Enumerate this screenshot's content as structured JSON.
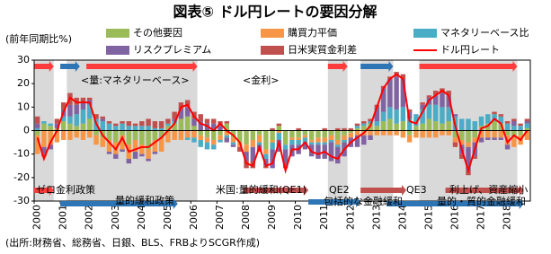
{
  "chart_data": {
    "type": "bar",
    "title": "図表⑤ ドル円レートの要因分解",
    "y_label": "(前年同期比%)",
    "source": "(出所:財務省、総務省、日銀、BLS、FRBよりSCGR作成)",
    "annotations": [
      "<量:マネタリーベース>",
      "<金利>",
      "ゼロ金利政策",
      "量的緩和政策",
      "米国:量的緩和(QE1)",
      "QE2",
      "包括的な金融緩和",
      "QE3",
      "利上げ、資産縮小",
      "量的・質的金融緩和"
    ],
    "categories": [
      "2000",
      null,
      null,
      null,
      "2001",
      null,
      null,
      null,
      "2002",
      null,
      null,
      null,
      "2003",
      null,
      null,
      null,
      "2004",
      null,
      null,
      null,
      "2005",
      null,
      null,
      null,
      "2006",
      null,
      null,
      null,
      "2007",
      null,
      null,
      null,
      "2008",
      null,
      null,
      null,
      "2009",
      null,
      null,
      null,
      "2010",
      null,
      null,
      null,
      "2011",
      null,
      null,
      null,
      "2012",
      null,
      null,
      null,
      "2013",
      null,
      null,
      null,
      "2014",
      null,
      null,
      null,
      "2015",
      null,
      null,
      null,
      "2016",
      null,
      null,
      null,
      "2017",
      null,
      null,
      null,
      "2018",
      null,
      null,
      null
    ],
    "ylim": [
      -30,
      30
    ],
    "yticks": [
      -30,
      -20,
      -10,
      0,
      10,
      20,
      30
    ],
    "grid": false,
    "series": [
      {
        "name": "その他要因",
        "color": "#9bbb59",
        "values": [
          -2,
          3,
          2,
          1,
          4,
          3,
          2,
          3,
          5,
          -2,
          -3,
          -4,
          -5,
          -2,
          -6,
          -4,
          -6,
          -8,
          -4,
          -3,
          2,
          3,
          5,
          6,
          2,
          -2,
          -3,
          -4,
          -2,
          3,
          -3,
          -5,
          -6,
          -4,
          -2,
          -8,
          -4,
          2,
          -6,
          -3,
          -3,
          -2,
          -4,
          -3,
          -3,
          -2,
          -4,
          -2,
          -1,
          1,
          2,
          3,
          2,
          4,
          5,
          3,
          4,
          -2,
          2,
          3,
          5,
          4,
          3,
          4,
          -3,
          -4,
          -5,
          -3,
          2,
          3,
          4,
          3,
          -2,
          -3,
          -2,
          1
        ]
      },
      {
        "name": "購買力平価",
        "color": "#f79646",
        "values": [
          -8,
          -7,
          -6,
          -5,
          -4,
          -4,
          -3,
          -4,
          -3,
          -4,
          -4,
          -5,
          -5,
          -6,
          -6,
          -5,
          -4,
          -4,
          -5,
          -6,
          -5,
          -4,
          -4,
          -3,
          -3,
          -2,
          -2,
          -2,
          -2,
          -2,
          -2,
          -2,
          -3,
          -3,
          -3,
          -2,
          -1,
          -1,
          0,
          -1,
          -1,
          -1,
          -1,
          -2,
          -2,
          -2,
          -2,
          -2,
          -2,
          -2,
          -2,
          -2,
          -2,
          -2,
          -2,
          -2,
          -3,
          -3,
          -3,
          -3,
          -3,
          -3,
          -2,
          -2,
          -2,
          -2,
          -2,
          -2,
          -3,
          -3,
          -3,
          -3,
          -4,
          -4,
          -4,
          -4
        ]
      },
      {
        "name": "マネタリーベース比",
        "color": "#4bacc6",
        "values": [
          1,
          1,
          1,
          0,
          2,
          3,
          5,
          6,
          6,
          5,
          4,
          3,
          2,
          3,
          2,
          2,
          2,
          2,
          1,
          1,
          1,
          1,
          0,
          -1,
          -2,
          -3,
          -3,
          -2,
          -1,
          -1,
          -1,
          0,
          0,
          0,
          -1,
          -2,
          -3,
          -3,
          -2,
          -2,
          -2,
          -2,
          -1,
          -1,
          -1,
          -1,
          -1,
          -1,
          0,
          1,
          1,
          1,
          2,
          4,
          5,
          6,
          6,
          5,
          5,
          6,
          6,
          7,
          7,
          6,
          6,
          5,
          5,
          4,
          4,
          4,
          3,
          3,
          3,
          2,
          2,
          2
        ]
      },
      {
        "name": "リスクプレミアム",
        "color": "#8064a2",
        "values": [
          2,
          -3,
          -2,
          2,
          3,
          5,
          4,
          3,
          2,
          0,
          1,
          -1,
          -2,
          -1,
          -2,
          -3,
          -1,
          -1,
          -1,
          0,
          0,
          1,
          4,
          4,
          3,
          4,
          3,
          3,
          2,
          -2,
          -1,
          0,
          -4,
          -6,
          -2,
          -3,
          -8,
          -5,
          -8,
          -5,
          -4,
          -3,
          -5,
          -6,
          -6,
          -8,
          -7,
          -6,
          -4,
          -5,
          -4,
          -2,
          6,
          10,
          12,
          14,
          12,
          3,
          0,
          2,
          3,
          4,
          6,
          5,
          1,
          -4,
          -10,
          -6,
          -2,
          -1,
          -1,
          -1,
          -2,
          2,
          0,
          1
        ]
      },
      {
        "name": "日米実質金利差",
        "color": "#c0504d",
        "values": [
          3,
          -1,
          0,
          2,
          3,
          5,
          3,
          2,
          1,
          2,
          1,
          1,
          1,
          1,
          2,
          1,
          2,
          3,
          3,
          3,
          2,
          3,
          3,
          3,
          3,
          3,
          2,
          2,
          2,
          1,
          0,
          -2,
          -3,
          -3,
          -1,
          -1,
          1,
          1,
          0,
          0,
          1,
          0,
          0,
          0,
          1,
          0,
          1,
          1,
          1,
          1,
          1,
          1,
          1,
          1,
          1,
          2,
          2,
          1,
          0,
          1,
          1,
          2,
          2,
          2,
          -2,
          -2,
          -2,
          -1,
          0,
          0,
          1,
          1,
          1,
          1,
          1,
          1
        ]
      }
    ],
    "line": {
      "name": "ドル円レート",
      "color": "#ff0000",
      "values": [
        -3,
        -12,
        -5,
        0,
        8,
        14,
        12,
        12,
        12,
        3,
        -2,
        -5,
        -8,
        -3,
        -9,
        -8,
        -7,
        -7,
        -5,
        -3,
        0,
        3,
        10,
        11,
        6,
        3,
        2,
        0,
        3,
        0,
        -2,
        -5,
        -14,
        -15,
        -7,
        -15,
        -14,
        -5,
        -17,
        -8,
        -8,
        -5,
        -9,
        -10,
        -9,
        -11,
        -12,
        -8,
        -5,
        -3,
        -1,
        2,
        10,
        18,
        22,
        24,
        22,
        4,
        3,
        8,
        13,
        15,
        17,
        15,
        2,
        -8,
        -17,
        -8,
        1,
        2,
        5,
        3,
        -5,
        -2,
        -4,
        0
      ]
    }
  }
}
